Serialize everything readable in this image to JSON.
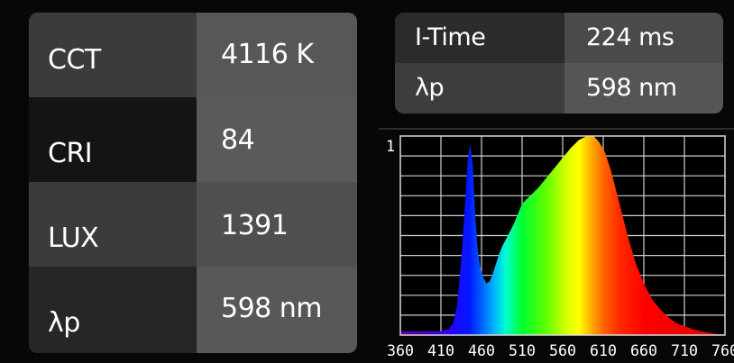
{
  "left_panel": {
    "rows": [
      {
        "label": "CCT",
        "value": "4116 K"
      },
      {
        "label": "CRI",
        "value": "84"
      },
      {
        "label": "LUX",
        "value": "1391"
      },
      {
        "label": "λp",
        "value": "598 nm"
      }
    ]
  },
  "right_panel": {
    "rows": [
      {
        "label": "I-Time",
        "value": "224 ms"
      },
      {
        "label": "λp",
        "value": "598 nm"
      }
    ]
  },
  "chart_data": {
    "type": "area",
    "title": "",
    "xlabel": "",
    "ylabel": "",
    "xlim": [
      360,
      760
    ],
    "ylim": [
      0,
      1
    ],
    "x_ticks": [
      "360",
      "410",
      "460",
      "510",
      "560",
      "610",
      "660",
      "710",
      "760"
    ],
    "y_ticks": [
      "1"
    ],
    "grid": true,
    "fill": "visible-spectrum",
    "x": [
      360,
      380,
      400,
      410,
      420,
      425,
      430,
      435,
      440,
      443,
      446,
      449,
      452,
      455,
      458,
      462,
      466,
      470,
      474,
      478,
      482,
      486,
      490,
      495,
      500,
      505,
      510,
      520,
      530,
      540,
      550,
      560,
      570,
      580,
      590,
      598,
      605,
      612,
      620,
      630,
      640,
      650,
      660,
      670,
      680,
      690,
      700,
      710,
      720,
      730,
      740,
      750,
      760
    ],
    "values": [
      0.02,
      0.02,
      0.02,
      0.02,
      0.03,
      0.06,
      0.15,
      0.38,
      0.68,
      0.88,
      0.96,
      0.86,
      0.62,
      0.44,
      0.35,
      0.29,
      0.26,
      0.27,
      0.31,
      0.36,
      0.41,
      0.45,
      0.48,
      0.52,
      0.56,
      0.61,
      0.66,
      0.7,
      0.74,
      0.79,
      0.84,
      0.89,
      0.94,
      0.98,
      1.0,
      1.0,
      0.97,
      0.92,
      0.82,
      0.66,
      0.5,
      0.36,
      0.26,
      0.18,
      0.13,
      0.09,
      0.06,
      0.045,
      0.03,
      0.02,
      0.012,
      0.006,
      0.003
    ]
  }
}
